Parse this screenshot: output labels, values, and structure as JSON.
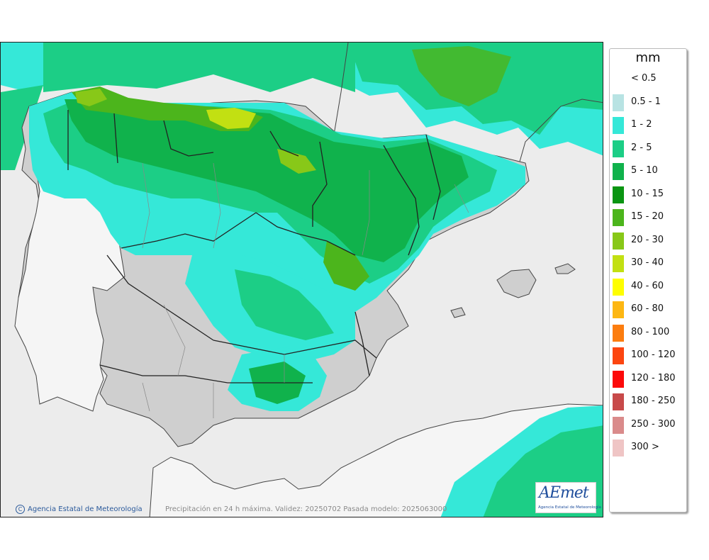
{
  "map": {
    "caption": "Precipitación en 24 h máxima. Validez: 20250702 Pasada modelo: 2025063000",
    "credit": "Agencia Estatal de Meteorología",
    "credit_mark": "C",
    "logo_text": "AEmet",
    "logo_subtext": "Agencia Estatal de Meteorología"
  },
  "legend": {
    "unit": "mm",
    "items": [
      {
        "label": "< 0.5",
        "color": "#ffffff"
      },
      {
        "label": "0.5 - 1",
        "color": "#b8e3e3"
      },
      {
        "label": "1 - 2",
        "color": "#35e8d8"
      },
      {
        "label": "2 - 5",
        "color": "#1cce86"
      },
      {
        "label": "5 - 10",
        "color": "#10b24c"
      },
      {
        "label": "10 - 15",
        "color": "#0a9512"
      },
      {
        "label": "15 - 20",
        "color": "#4cb51c"
      },
      {
        "label": "20 - 30",
        "color": "#88c818"
      },
      {
        "label": "30 - 40",
        "color": "#c2e012"
      },
      {
        "label": "40 - 60",
        "color": "#fefe00"
      },
      {
        "label": "60 - 80",
        "color": "#fdb713"
      },
      {
        "label": "80 - 100",
        "color": "#fc7d0f"
      },
      {
        "label": "100 - 120",
        "color": "#fc4610"
      },
      {
        "label": "120 - 180",
        "color": "#fc0a0a"
      },
      {
        "label": "180 - 250",
        "color": "#c84a4a"
      },
      {
        "label": "250 - 300",
        "color": "#da8b8b"
      },
      {
        "label": "300 >",
        "color": "#efc5c5"
      }
    ]
  }
}
